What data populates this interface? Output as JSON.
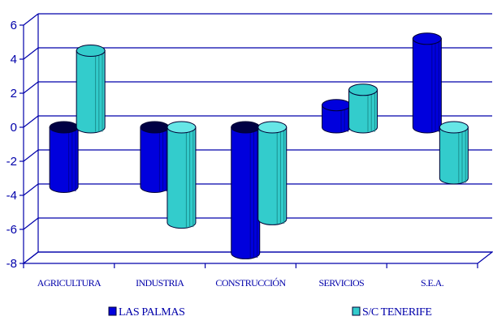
{
  "chart_data": {
    "type": "bar",
    "categories": [
      "AGRICULTURA",
      "INDUSTRIA",
      "CONSTRUCCIÓN",
      "SERVICIOS",
      "S.E.A."
    ],
    "series": [
      {
        "name": "LAS PALMAS",
        "values": [
          -3.5,
          -3.5,
          -7.4,
          1.3,
          5.2
        ]
      },
      {
        "name": "S/C TENERIFE",
        "values": [
          4.5,
          -5.6,
          -5.4,
          2.2,
          -3.0
        ]
      }
    ],
    "ylim": [
      -8,
      6
    ],
    "yticks": [
      6,
      4,
      2,
      0,
      -2,
      -4,
      -6,
      -8
    ],
    "grid": true,
    "legend": "bottom",
    "colors": {
      "series": [
        "#0000dd",
        "#33cccc"
      ],
      "series_side": [
        "#000099",
        "#1a8f8f"
      ],
      "series_top": [
        "#000044",
        "#66e6e6"
      ],
      "axis": "#0000aa",
      "grid": "#0000aa"
    }
  }
}
